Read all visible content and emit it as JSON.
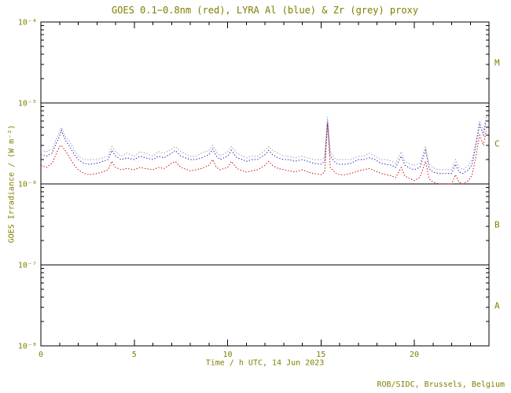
{
  "page": {
    "footer": "ROB/SIDC, Brussels, Belgium"
  },
  "colors": {
    "background": "#ffffff",
    "text": "#7f7f00",
    "axis": "#000000",
    "goes_red": "#cc0000",
    "lyra_al_blue": "#2222bb",
    "zr_grey": "#9a9a9a"
  },
  "chart_data": {
    "type": "line",
    "title": "GOES 0.1−0.8nm (red), LYRA Al (blue) & Zr (grey) proxy",
    "xlabel": "Time / h UTC, 14 Jun 2023",
    "ylabel": "GOES Irradiance / (W m⁻²)",
    "grid": false,
    "legend": "inline-in-title",
    "x_range": [
      0,
      24
    ],
    "x_major_ticks": [
      0,
      5,
      10,
      15,
      20
    ],
    "x_minor_step": 1,
    "y_scale": "log",
    "y_range_exponents": [
      -8,
      -4
    ],
    "y_tick_labels": [
      "10⁻⁴",
      "10⁻⁵",
      "10⁻⁶",
      "10⁻⁷",
      "10⁻⁸"
    ],
    "boundary_lines_exponents": [
      -5,
      -6,
      -7
    ],
    "class_bands": [
      {
        "label": "M",
        "between_exponents": [
          -5,
          -4
        ]
      },
      {
        "label": "C",
        "between_exponents": [
          -6,
          -5
        ]
      },
      {
        "label": "B",
        "between_exponents": [
          -7,
          -6
        ]
      },
      {
        "label": "A",
        "between_exponents": [
          -8,
          -7
        ]
      }
    ],
    "unit_scale": 1e-06,
    "x": [
      0,
      0.3,
      0.6,
      0.8,
      1,
      1.1,
      1.3,
      1.5,
      1.8,
      2,
      2.3,
      2.6,
      3,
      3.3,
      3.6,
      3.8,
      4,
      4.3,
      4.6,
      5,
      5.3,
      5.6,
      6,
      6.3,
      6.6,
      7,
      7.2,
      7.5,
      8,
      8.3,
      8.6,
      9,
      9.2,
      9.4,
      9.6,
      10,
      10.2,
      10.5,
      10.8,
      11,
      11.3,
      11.6,
      12,
      12.2,
      12.4,
      12.7,
      13,
      13.3,
      13.6,
      14,
      14.3,
      14.6,
      15,
      15.2,
      15.35,
      15.5,
      15.8,
      16,
      16.3,
      16.6,
      17,
      17.3,
      17.6,
      17.9,
      18.2,
      18.5,
      18.8,
      19,
      19.3,
      19.5,
      19.8,
      20,
      20.3,
      20.6,
      20.8,
      21,
      21.3,
      21.6,
      22,
      22.2,
      22.4,
      22.6,
      22.9,
      23.1,
      23.3,
      23.5,
      23.7,
      23.85
    ],
    "series": [
      {
        "name": "Zr (grey) proxy",
        "color_key": "zr_grey",
        "values": [
          2.6,
          2.5,
          2.7,
          3.5,
          4.4,
          5.0,
          3.9,
          3.4,
          2.6,
          2.2,
          2.0,
          2.0,
          2.0,
          2.1,
          2.2,
          2.9,
          2.5,
          2.2,
          2.4,
          2.2,
          2.5,
          2.4,
          2.2,
          2.5,
          2.4,
          2.7,
          2.9,
          2.5,
          2.2,
          2.2,
          2.4,
          2.6,
          3.0,
          2.5,
          2.2,
          2.5,
          2.9,
          2.4,
          2.2,
          2.1,
          2.2,
          2.2,
          2.6,
          2.9,
          2.6,
          2.4,
          2.2,
          2.2,
          2.1,
          2.2,
          2.1,
          2.0,
          2.0,
          2.1,
          6.7,
          2.5,
          2.0,
          2.0,
          2.0,
          2.0,
          2.2,
          2.2,
          2.4,
          2.2,
          2.0,
          2.0,
          1.9,
          1.8,
          2.5,
          1.9,
          1.75,
          1.7,
          1.8,
          2.9,
          1.75,
          1.6,
          1.5,
          1.5,
          1.5,
          2.0,
          1.6,
          1.5,
          1.7,
          2.0,
          3.4,
          6.0,
          4.5,
          6.7
        ]
      },
      {
        "name": "LYRA Al (blue)",
        "color_key": "lyra_al_blue",
        "values": [
          2.3,
          2.2,
          2.4,
          3.1,
          3.9,
          4.6,
          3.5,
          3.0,
          2.3,
          2.0,
          1.8,
          1.75,
          1.8,
          1.9,
          2.0,
          2.6,
          2.2,
          2.0,
          2.1,
          2.0,
          2.2,
          2.1,
          2.0,
          2.2,
          2.1,
          2.4,
          2.6,
          2.2,
          2.0,
          2.0,
          2.1,
          2.3,
          2.7,
          2.2,
          2.0,
          2.2,
          2.6,
          2.1,
          2.0,
          1.9,
          2.0,
          2.0,
          2.3,
          2.6,
          2.3,
          2.1,
          2.0,
          2.0,
          1.9,
          2.0,
          1.9,
          1.8,
          1.75,
          1.9,
          6.0,
          2.2,
          1.8,
          1.75,
          1.75,
          1.8,
          2.0,
          2.0,
          2.1,
          2.0,
          1.8,
          1.75,
          1.7,
          1.6,
          2.2,
          1.7,
          1.55,
          1.5,
          1.6,
          2.6,
          1.55,
          1.4,
          1.35,
          1.35,
          1.35,
          1.75,
          1.4,
          1.35,
          1.5,
          1.75,
          3.0,
          5.4,
          4.0,
          6.0
        ]
      },
      {
        "name": "GOES 0.1−0.8nm (red)",
        "color_key": "goes_red",
        "values": [
          1.7,
          1.6,
          1.8,
          2.3,
          2.9,
          3.0,
          2.6,
          2.2,
          1.7,
          1.5,
          1.35,
          1.3,
          1.35,
          1.4,
          1.5,
          1.9,
          1.6,
          1.5,
          1.55,
          1.5,
          1.6,
          1.55,
          1.5,
          1.6,
          1.55,
          1.8,
          1.9,
          1.6,
          1.45,
          1.5,
          1.55,
          1.7,
          2.0,
          1.6,
          1.5,
          1.6,
          1.9,
          1.55,
          1.45,
          1.4,
          1.45,
          1.5,
          1.7,
          1.9,
          1.7,
          1.55,
          1.5,
          1.45,
          1.4,
          1.5,
          1.4,
          1.35,
          1.3,
          1.4,
          5.5,
          1.6,
          1.35,
          1.3,
          1.3,
          1.35,
          1.45,
          1.5,
          1.55,
          1.45,
          1.35,
          1.3,
          1.25,
          1.2,
          1.6,
          1.25,
          1.15,
          1.1,
          1.2,
          1.9,
          1.15,
          1.05,
          1.0,
          1.0,
          1.0,
          1.3,
          1.05,
          1.0,
          1.1,
          1.3,
          2.2,
          4.0,
          3.0,
          4.5
        ]
      }
    ]
  }
}
